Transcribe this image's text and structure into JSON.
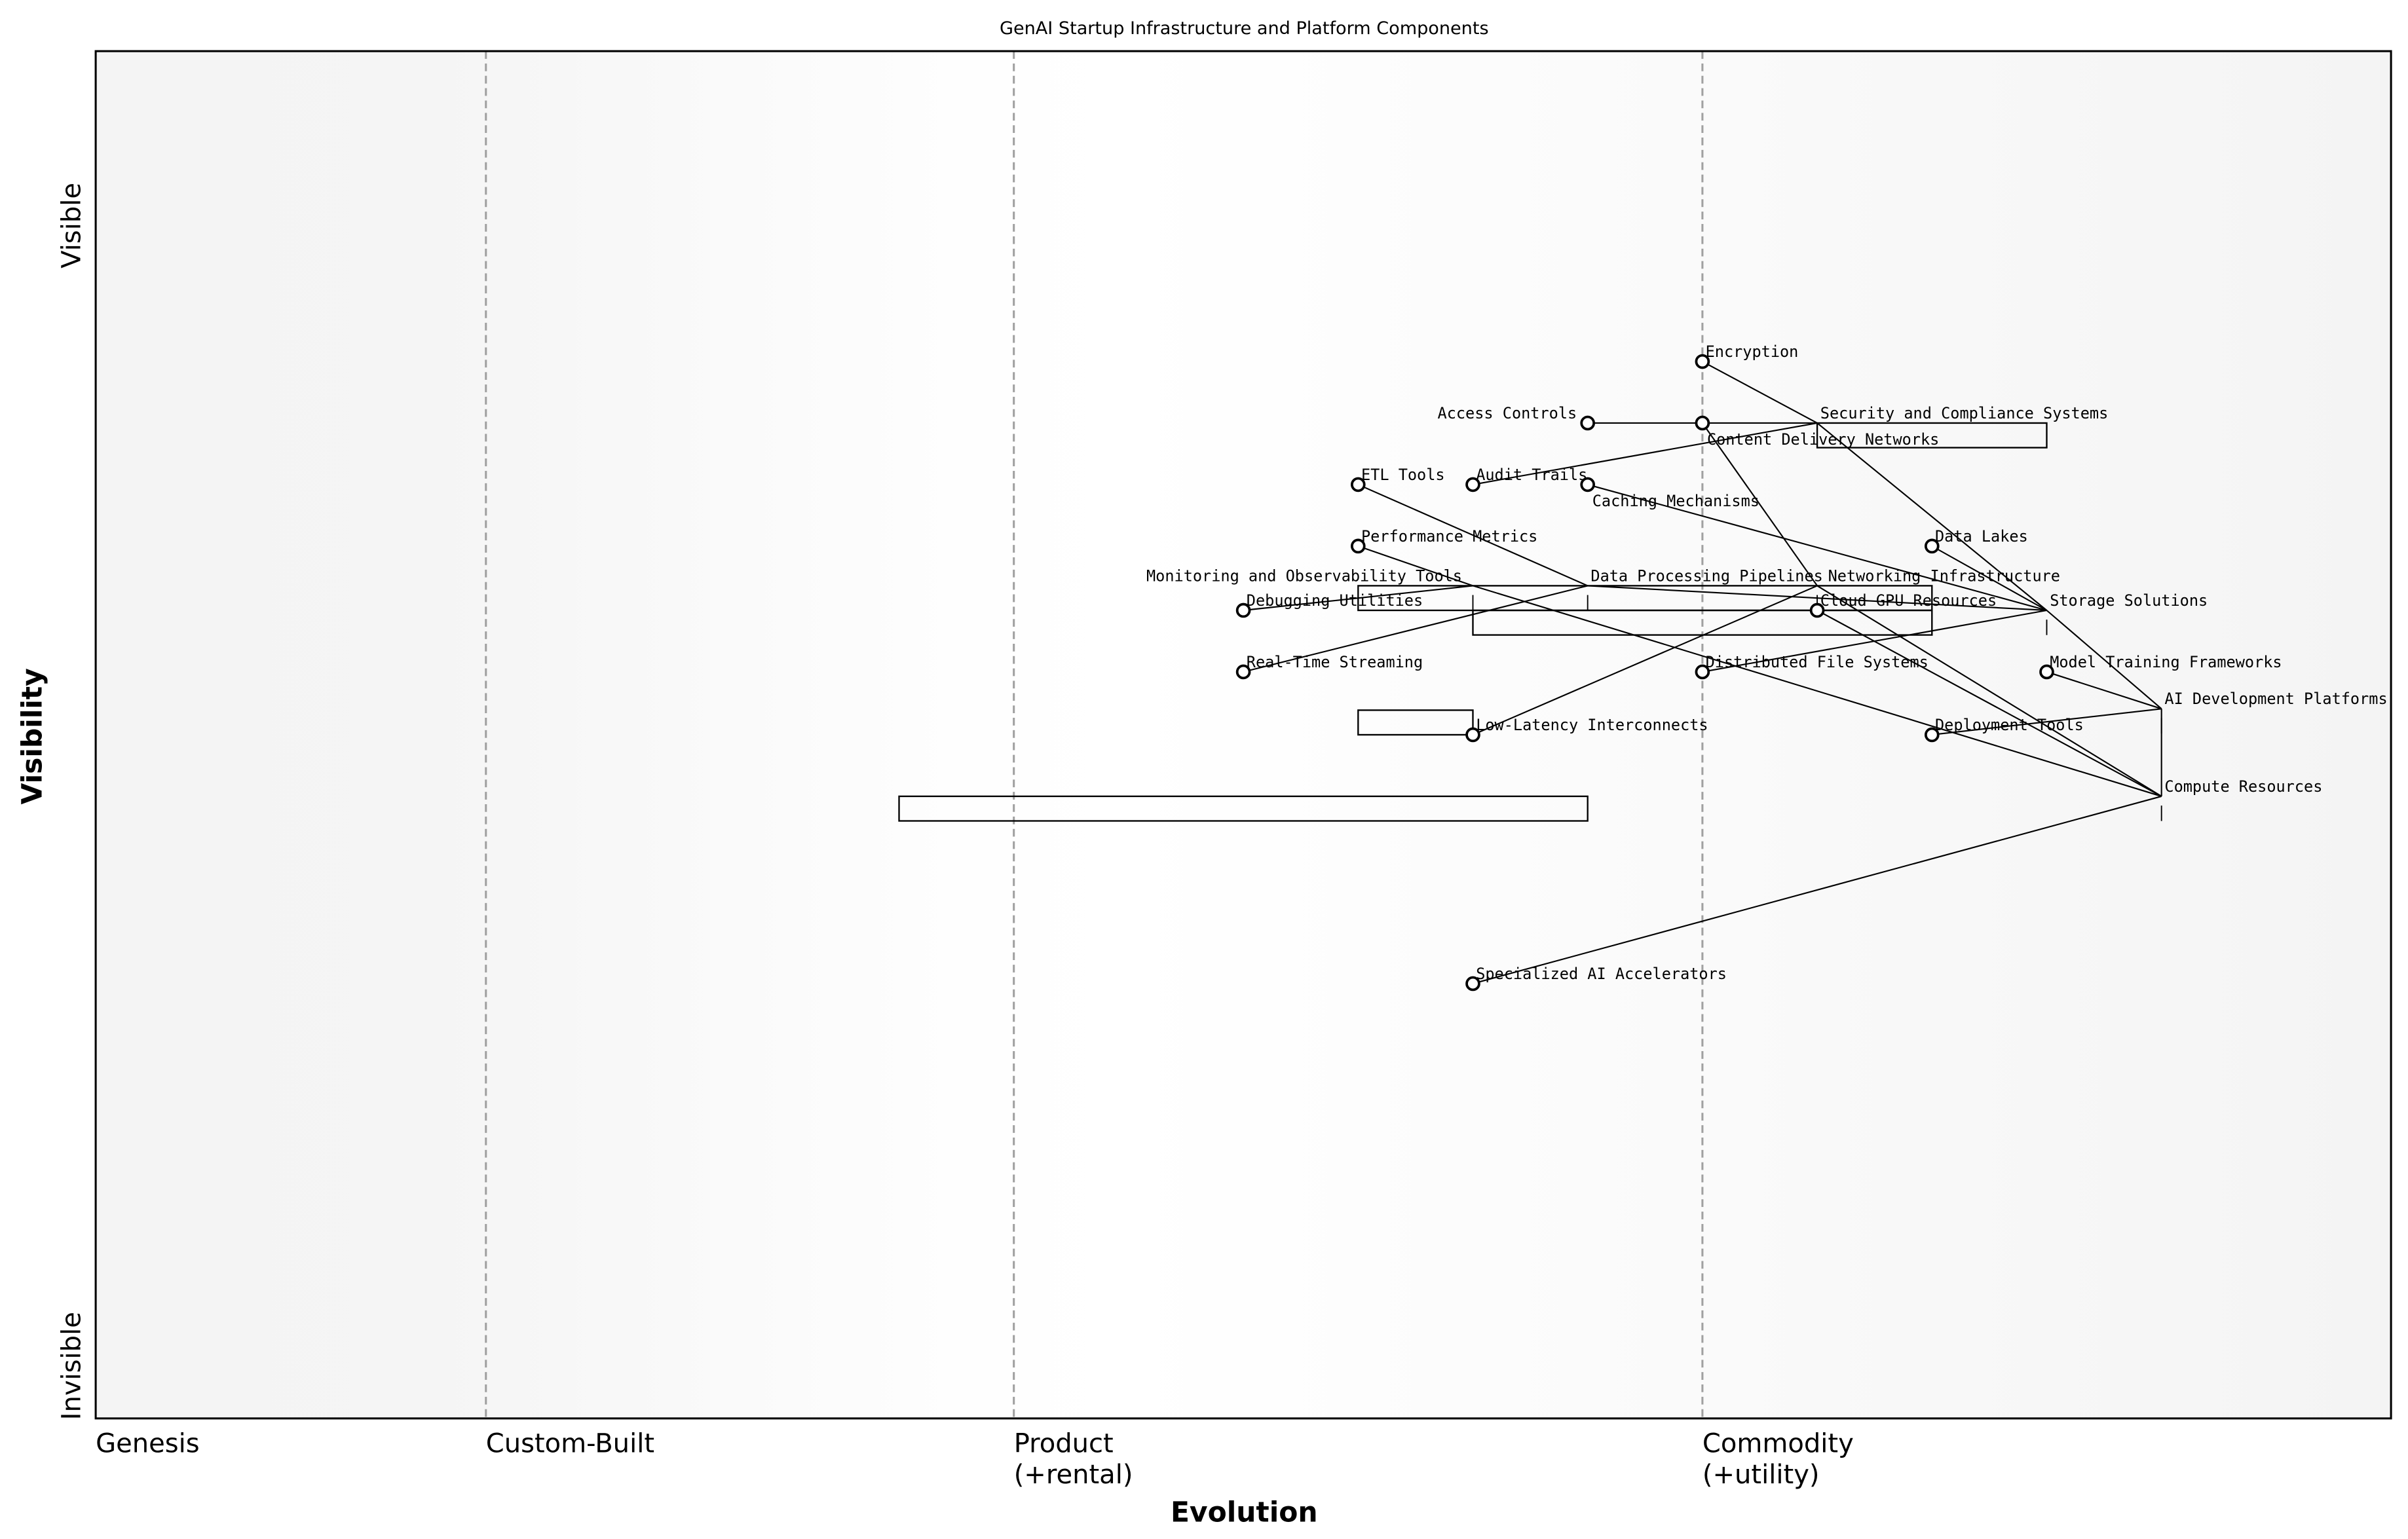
{
  "title": "GenAI Startup Infrastructure and Platform Components",
  "axes": {
    "x_label": "Evolution",
    "y_label": "Visibility",
    "y_top": "Visible",
    "y_bottom": "Invisible",
    "stages": [
      {
        "line1": "Genesis",
        "line2": "",
        "at": 0.0
      },
      {
        "line1": "Custom-Built",
        "line2": "",
        "at": 0.17
      },
      {
        "line1": "Product",
        "line2": "(+rental)",
        "at": 0.4
      },
      {
        "line1": "Commodity",
        "line2": "(+utility)",
        "at": 0.7
      }
    ]
  },
  "components": [
    {
      "name": "Encryption",
      "evolution": 0.7,
      "visibility": 0.773,
      "marker": true
    },
    {
      "name": "Access Controls",
      "evolution": 0.65,
      "visibility": 0.728,
      "marker": true
    },
    {
      "name": "Content Delivery Networks",
      "evolution": 0.7,
      "visibility": 0.728,
      "marker": true
    },
    {
      "name": "Security and Compliance Systems",
      "evolution": 0.75,
      "visibility": 0.728,
      "marker": false
    },
    {
      "name": "ETL Tools",
      "evolution": 0.55,
      "visibility": 0.683,
      "marker": true
    },
    {
      "name": "Audit Trails",
      "evolution": 0.6,
      "visibility": 0.683,
      "marker": true
    },
    {
      "name": "Caching Mechanisms",
      "evolution": 0.65,
      "visibility": 0.683,
      "marker": true
    },
    {
      "name": "Performance Metrics",
      "evolution": 0.55,
      "visibility": 0.638,
      "marker": true
    },
    {
      "name": "Data Lakes",
      "evolution": 0.8,
      "visibility": 0.638,
      "marker": true
    },
    {
      "name": "Monitoring and Observability Tools",
      "evolution": 0.6,
      "visibility": 0.609,
      "marker": false
    },
    {
      "name": "Data Processing Pipelines",
      "evolution": 0.65,
      "visibility": 0.609,
      "marker": false
    },
    {
      "name": "Networking Infrastructure",
      "evolution": 0.75,
      "visibility": 0.609,
      "marker": false
    },
    {
      "name": "Cloud GPU Resources",
      "evolution": 0.75,
      "visibility": 0.591,
      "marker": true
    },
    {
      "name": "Storage Solutions",
      "evolution": 0.85,
      "visibility": 0.591,
      "marker": false
    },
    {
      "name": "Debugging Utilities",
      "evolution": 0.5,
      "visibility": 0.591,
      "marker": true
    },
    {
      "name": "Real-Time Streaming",
      "evolution": 0.5,
      "visibility": 0.546,
      "marker": true
    },
    {
      "name": "Distributed File Systems",
      "evolution": 0.7,
      "visibility": 0.546,
      "marker": true
    },
    {
      "name": "Model Training Frameworks",
      "evolution": 0.85,
      "visibility": 0.546,
      "marker": true
    },
    {
      "name": "AI Development Platforms",
      "evolution": 0.9,
      "visibility": 0.519,
      "marker": false
    },
    {
      "name": "Low-Latency Interconnects",
      "evolution": 0.6,
      "visibility": 0.5,
      "marker": true
    },
    {
      "name": "Deployment Tools",
      "evolution": 0.8,
      "visibility": 0.5,
      "marker": true
    },
    {
      "name": "Compute Resources",
      "evolution": 0.9,
      "visibility": 0.455,
      "marker": false
    },
    {
      "name": "Specialized AI Accelerators",
      "evolution": 0.6,
      "visibility": 0.318,
      "marker": true
    }
  ],
  "links": [
    [
      "Encryption",
      "Security and Compliance Systems"
    ],
    [
      "Access Controls",
      "Security and Compliance Systems"
    ],
    [
      "Audit Trails",
      "Security and Compliance Systems"
    ],
    [
      "Security and Compliance Systems",
      "Storage Solutions"
    ],
    [
      "Content Delivery Networks",
      "Networking Infrastructure"
    ],
    [
      "ETL Tools",
      "Data Processing Pipelines"
    ],
    [
      "Real-Time Streaming",
      "Data Processing Pipelines"
    ],
    [
      "Data Processing Pipelines",
      "Storage Solutions"
    ],
    [
      "Caching Mechanisms",
      "Storage Solutions"
    ],
    [
      "Performance Metrics",
      "Monitoring and Observability Tools"
    ],
    [
      "Debugging Utilities",
      "Monitoring and Observability Tools"
    ],
    [
      "Monitoring and Observability Tools",
      "Compute Resources"
    ],
    [
      "Low-Latency Interconnects",
      "Networking Infrastructure"
    ],
    [
      "Networking Infrastructure",
      "Compute Resources"
    ],
    [
      "Cloud GPU Resources",
      "Compute Resources"
    ],
    [
      "Distributed File Systems",
      "Storage Solutions"
    ],
    [
      "Data Lakes",
      "Storage Solutions"
    ],
    [
      "Storage Solutions",
      "AI Development Platforms"
    ],
    [
      "Model Training Frameworks",
      "AI Development Platforms"
    ],
    [
      "Deployment Tools",
      "AI Development Platforms"
    ],
    [
      "AI Development Platforms",
      "Compute Resources"
    ],
    [
      "Specialized AI Accelerators",
      "Compute Resources"
    ]
  ],
  "boxes": [
    {
      "evolution": [
        0.75,
        0.85
      ],
      "visibility": [
        0.71,
        0.728
      ]
    },
    {
      "evolution": [
        0.55,
        0.8
      ],
      "visibility": [
        0.591,
        0.609
      ]
    },
    {
      "evolution": [
        0.6,
        0.8
      ],
      "visibility": [
        0.573,
        0.591
      ]
    },
    {
      "evolution": [
        0.55,
        0.6
      ],
      "visibility": [
        0.5,
        0.518
      ]
    },
    {
      "evolution": [
        0.35,
        0.65
      ],
      "visibility": [
        0.437,
        0.455
      ]
    }
  ],
  "colors": {
    "stage_line": "#a0a0a0",
    "edge": "#f4f4f4",
    "center": "#ffffff",
    "ink": "#000000"
  }
}
